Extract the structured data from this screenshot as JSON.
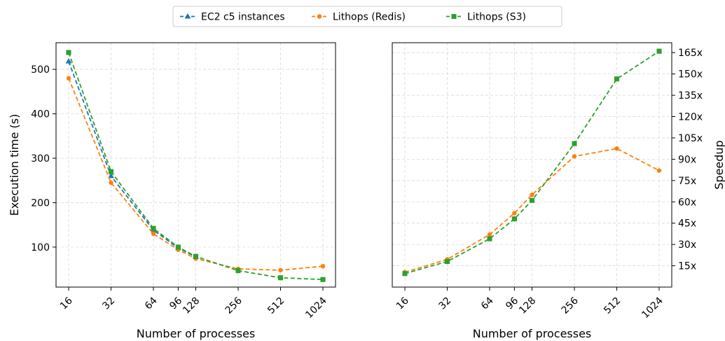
{
  "legend": {
    "placement": "top-center",
    "entries": [
      {
        "label": "EC2 c5 instances",
        "color": "#1f77b4",
        "marker": "triangle",
        "linestyle": "dashed"
      },
      {
        "label": "Lithops (Redis)",
        "color": "#ff7f0e",
        "marker": "circle",
        "linestyle": "dashed"
      },
      {
        "label": "Lithops (S3)",
        "color": "#2ca02c",
        "marker": "square",
        "linestyle": "dashed"
      }
    ]
  },
  "chart_data": [
    {
      "type": "line",
      "xscale": "log2",
      "x": [
        16,
        32,
        64,
        96,
        128,
        256,
        512,
        1024
      ],
      "xtick_labels": [
        "16",
        "32",
        "64",
        "96",
        "128",
        "256",
        "512",
        "1024"
      ],
      "xlabel": "Number of processes",
      "ylabel": "Execution time (s)",
      "ylim": [
        10,
        560
      ],
      "yticks": [
        100,
        200,
        300,
        400,
        500
      ],
      "ytick_labels": [
        "100",
        "200",
        "300",
        "400",
        "500"
      ],
      "yaxis_side": "left",
      "grid": true,
      "series": [
        {
          "name": "EC2 c5 instances",
          "color": "#1f77b4",
          "marker": "triangle",
          "x": [
            16,
            32,
            64,
            96,
            128
          ],
          "values": [
            518,
            260,
            138,
            98,
            78
          ]
        },
        {
          "name": "Lithops (Redis)",
          "color": "#ff7f0e",
          "marker": "circle",
          "x": [
            16,
            32,
            64,
            96,
            128,
            256,
            512,
            1024
          ],
          "values": [
            480,
            245,
            130,
            94,
            74,
            51,
            48,
            57
          ]
        },
        {
          "name": "Lithops (S3)",
          "color": "#2ca02c",
          "marker": "square",
          "x": [
            16,
            32,
            64,
            96,
            128,
            256,
            512,
            1024
          ],
          "values": [
            538,
            270,
            142,
            100,
            79,
            47,
            31,
            27
          ]
        }
      ]
    },
    {
      "type": "line",
      "xscale": "log2",
      "x": [
        16,
        32,
        64,
        96,
        128,
        256,
        512,
        1024
      ],
      "xtick_labels": [
        "16",
        "32",
        "64",
        "96",
        "128",
        "256",
        "512",
        "1024"
      ],
      "xlabel": "Number of processes",
      "ylabel": "Speedup",
      "ylim": [
        0,
        172
      ],
      "yticks": [
        15,
        30,
        45,
        60,
        75,
        90,
        105,
        120,
        135,
        150,
        165
      ],
      "ytick_labels": [
        "15x",
        "30x",
        "45x",
        "60x",
        "75x",
        "90x",
        "105x",
        "120x",
        "135x",
        "150x",
        "165x"
      ],
      "yaxis_side": "right",
      "grid": true,
      "series": [
        {
          "name": "Lithops (Redis)",
          "color": "#ff7f0e",
          "marker": "circle",
          "x": [
            16,
            32,
            64,
            96,
            128,
            256,
            512,
            1024
          ],
          "values": [
            10.5,
            19.5,
            37,
            52,
            65,
            92,
            97.5,
            82
          ]
        },
        {
          "name": "Lithops (S3)",
          "color": "#2ca02c",
          "marker": "square",
          "x": [
            16,
            32,
            64,
            96,
            128,
            256,
            512,
            1024
          ],
          "values": [
            9.5,
            18,
            34,
            48,
            61,
            101,
            146.5,
            166
          ]
        }
      ]
    }
  ]
}
